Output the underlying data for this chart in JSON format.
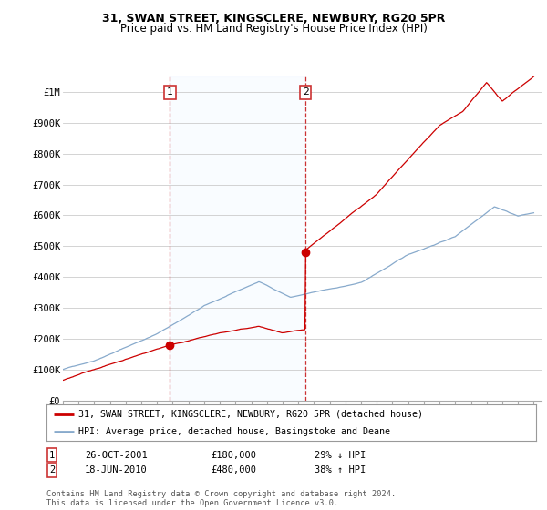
{
  "title": "31, SWAN STREET, KINGSCLERE, NEWBURY, RG20 5PR",
  "subtitle": "Price paid vs. HM Land Registry's House Price Index (HPI)",
  "ylabel_ticks": [
    "£0",
    "£100K",
    "£200K",
    "£300K",
    "£400K",
    "£500K",
    "£600K",
    "£700K",
    "£800K",
    "£900K",
    "£1M"
  ],
  "ytick_values": [
    0,
    100000,
    200000,
    300000,
    400000,
    500000,
    600000,
    700000,
    800000,
    900000,
    1000000
  ],
  "ylim": [
    0,
    1050000
  ],
  "xlim_start": 1995.0,
  "xlim_end": 2025.5,
  "marker1_x": 2001.82,
  "marker1_y": 180000,
  "marker2_x": 2010.46,
  "marker2_y": 480000,
  "vline1_x": 2001.82,
  "vline2_x": 2010.46,
  "red_line_color": "#cc0000",
  "blue_line_color": "#88aacc",
  "vline_color": "#cc3333",
  "shade_color": "#ddeeff",
  "marker_color": "#cc0000",
  "grid_color": "#cccccc",
  "bg_color": "#ffffff",
  "legend_label_red": "31, SWAN STREET, KINGSCLERE, NEWBURY, RG20 5PR (detached house)",
  "legend_label_blue": "HPI: Average price, detached house, Basingstoke and Deane",
  "annotation1_label": "1",
  "annotation2_label": "2",
  "note1_date": "26-OCT-2001",
  "note1_price": "£180,000",
  "note1_hpi": "29% ↓ HPI",
  "note2_date": "18-JUN-2010",
  "note2_price": "£480,000",
  "note2_hpi": "38% ↑ HPI",
  "footer": "Contains HM Land Registry data © Crown copyright and database right 2024.\nThis data is licensed under the Open Government Licence v3.0.",
  "title_fontsize": 9,
  "subtitle_fontsize": 8.5,
  "tick_fontsize": 7.5
}
